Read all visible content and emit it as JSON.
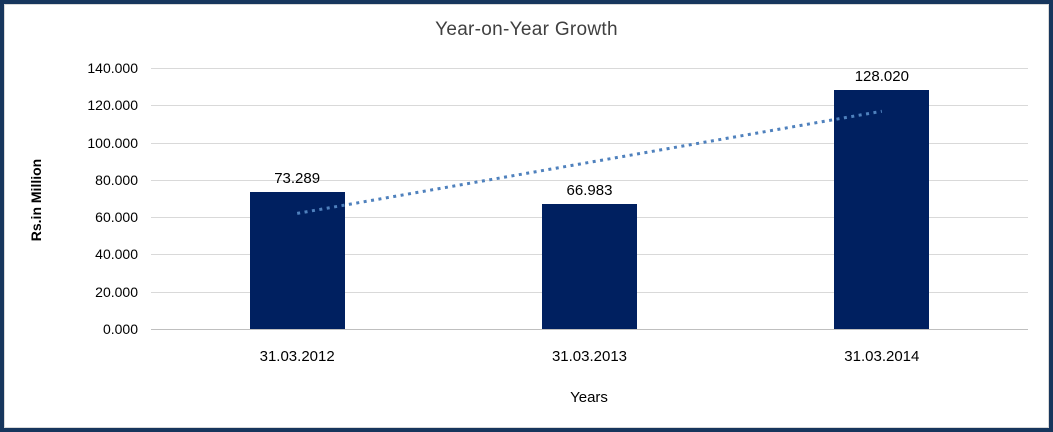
{
  "frame": {
    "border_color": "#17365d",
    "inner_line_color": "#d9d9d9",
    "background": "#ffffff"
  },
  "chart_data": {
    "type": "bar",
    "title": "Year-on-Year Growth",
    "xlabel": "Years",
    "ylabel": "Rs.in Million",
    "categories": [
      "31.03.2012",
      "31.03.2013",
      "31.03.2014"
    ],
    "values": [
      73.289,
      66.983,
      128.02
    ],
    "data_labels": [
      "73.289",
      "66.983",
      "128.020"
    ],
    "ylim": [
      0,
      140
    ],
    "ytick_values": [
      0,
      20,
      40,
      60,
      80,
      100,
      120,
      140
    ],
    "ytick_labels": [
      "0.000",
      "20.000",
      "40.000",
      "60.000",
      "80.000",
      "100.000",
      "120.000",
      "140.000"
    ],
    "grid": "horizontal",
    "legend": "none",
    "bar_color": "#002060",
    "gridline_color": "#d9d9d9",
    "axis_line_color": "#bfbfbf",
    "text_color": "#000000",
    "title_color": "#404040",
    "trendline": {
      "type": "linear",
      "style": "dotted",
      "color": "#4f81bd",
      "start_value": 62.0,
      "end_value": 116.8
    }
  }
}
